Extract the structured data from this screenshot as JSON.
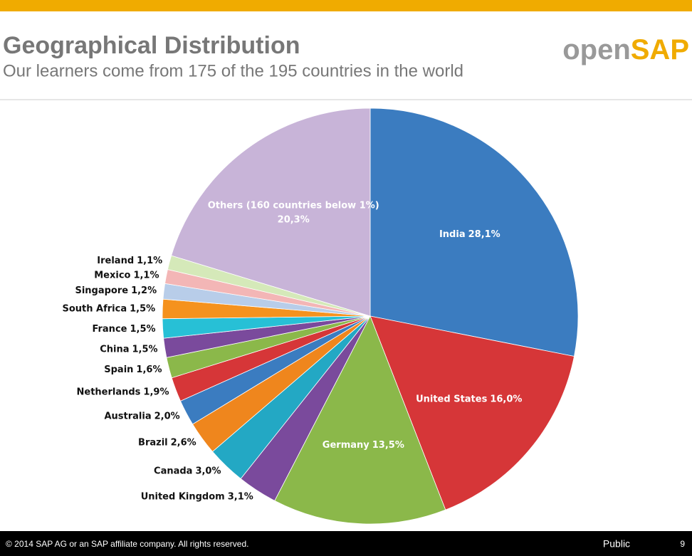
{
  "chart_data": {
    "type": "pie",
    "title": "Geographical Distribution",
    "subtitle": "Our learners come from 175 of the 195 countries in the world",
    "categories": [
      "India",
      "United States",
      "Germany",
      "United Kingdom",
      "Canada",
      "Brazil",
      "Australia",
      "Netherlands",
      "Spain",
      "China",
      "France",
      "South Africa",
      "Singapore",
      "Mexico",
      "Ireland",
      "Others (160 countries below 1%)"
    ],
    "values": [
      28.1,
      16.0,
      13.5,
      3.1,
      3.0,
      2.6,
      2.0,
      1.9,
      1.6,
      1.5,
      1.5,
      1.5,
      1.2,
      1.1,
      1.1,
      20.3
    ],
    "value_labels": [
      "28,1%",
      "16,0%",
      "13,5%",
      "3,1%",
      "3,0%",
      "2,6%",
      "2,0%",
      "1,9%",
      "1,6%",
      "1,5%",
      "1,5%",
      "1,5%",
      "1,2%",
      "1,1%",
      "1,1%",
      "20,3%"
    ],
    "colors": [
      "#3b7cc0",
      "#d63638",
      "#8bb84a",
      "#7a4a9c",
      "#23a8c4",
      "#ef861d",
      "#3b7cc0",
      "#d63638",
      "#8bb84a",
      "#7a4a9c",
      "#27c0d6",
      "#f5921e",
      "#b8cde9",
      "#f3b6b6",
      "#d5e9b9",
      "#c8b4d8"
    ]
  },
  "logo": {
    "open": "open",
    "sap": "SAP"
  },
  "footer": {
    "copyright": "© 2014 SAP AG or an SAP affiliate company. All rights reserved.",
    "classification": "Public",
    "page": "9"
  }
}
